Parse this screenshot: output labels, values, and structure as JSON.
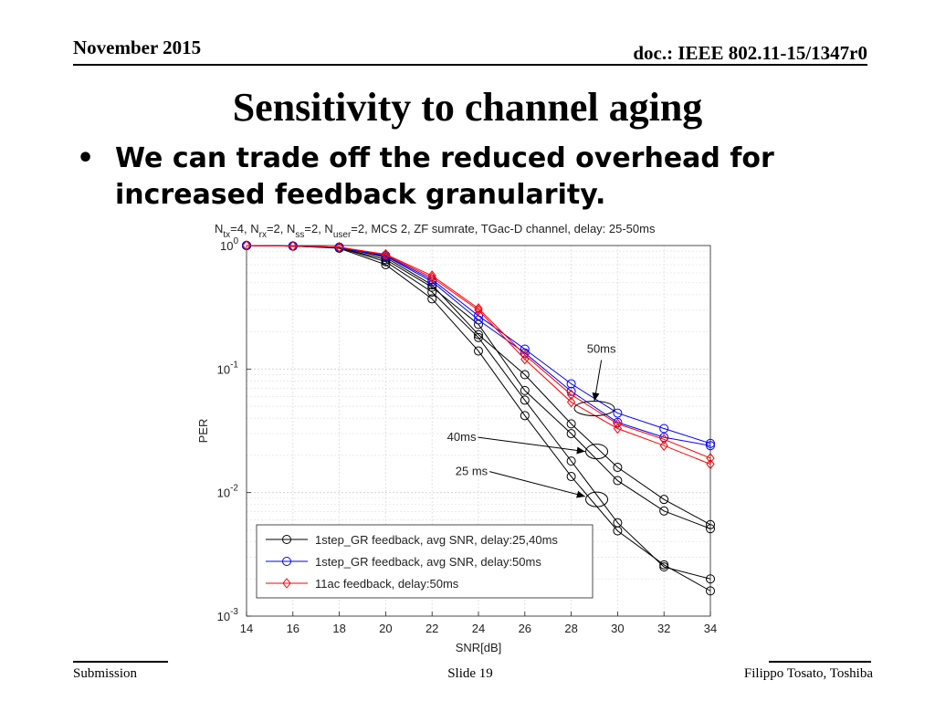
{
  "header": {
    "date": "November 2015",
    "doc": "doc.: IEEE 802.11-15/1347r0"
  },
  "slide_title": "Sensitivity to channel aging",
  "bullet": {
    "symbol": "•",
    "text": "We can trade off the reduced overhead for increased feedback granularity."
  },
  "footer": {
    "left": "Submission",
    "center": "Slide 19",
    "right": "Filippo Tosato, Toshiba"
  },
  "chart_data": {
    "type": "line",
    "title": {
      "parts": [
        {
          "t": "N"
        },
        {
          "t": "tx",
          "sub": true
        },
        {
          "t": "=4, N"
        },
        {
          "t": "rx",
          "sub": true
        },
        {
          "t": "=2, N"
        },
        {
          "t": "ss",
          "sub": true
        },
        {
          "t": "=2, N"
        },
        {
          "t": "user",
          "sub": true
        },
        {
          "t": "=2, MCS 2, ZF sumrate, TGac-D channel, delay: 25-50ms"
        }
      ]
    },
    "xlabel": "SNR[dB]",
    "ylabel": "PER",
    "xlim": [
      14,
      34
    ],
    "ylim": [
      0.001,
      1
    ],
    "yscale": "log",
    "grid": true,
    "xticks": [
      14,
      16,
      18,
      20,
      22,
      24,
      26,
      28,
      30,
      32,
      34
    ],
    "yticks": [
      {
        "value": 1,
        "base": "10",
        "exp": "0"
      },
      {
        "value": 0.1,
        "base": "10",
        "exp": "-1"
      },
      {
        "value": 0.01,
        "base": "10",
        "exp": "-2"
      },
      {
        "value": 0.001,
        "base": "10",
        "exp": "-3"
      }
    ],
    "legend_position": "bottom-left",
    "legend": [
      {
        "label": "1step_GR feedback, avg SNR, delay:25,40ms",
        "color": "#000000",
        "marker": "circle"
      },
      {
        "label": "1step_GR feedback, avg SNR, delay:50ms",
        "color": "#0000ff",
        "marker": "circle"
      },
      {
        "label": "11ac feedback, delay:50ms",
        "color": "#ff0000",
        "marker": "diamond"
      }
    ],
    "x": [
      14,
      16,
      18,
      20,
      22,
      24,
      26,
      28,
      30,
      32,
      34
    ],
    "series": [
      {
        "group": 0,
        "color": "#000000",
        "marker": "circle",
        "values": [
          1.0,
          0.99,
          0.95,
          0.7,
          0.37,
          0.14,
          0.042,
          0.0135,
          0.0049,
          0.0026,
          0.0016
        ]
      },
      {
        "group": 0,
        "color": "#000000",
        "marker": "circle",
        "values": [
          1.0,
          0.99,
          0.96,
          0.74,
          0.42,
          0.18,
          0.056,
          0.018,
          0.0057,
          0.0025,
          0.002
        ]
      },
      {
        "group": 0,
        "color": "#000000",
        "marker": "circle",
        "values": [
          1.0,
          0.99,
          0.96,
          0.77,
          0.46,
          0.23,
          0.067,
          0.03,
          0.0125,
          0.0071,
          0.0051
        ]
      },
      {
        "group": 0,
        "color": "#000000",
        "marker": "circle",
        "values": [
          1.0,
          0.99,
          0.97,
          0.8,
          0.48,
          0.19,
          0.09,
          0.036,
          0.016,
          0.0088,
          0.0055
        ]
      },
      {
        "group": 1,
        "color": "#0000ff",
        "marker": "circle",
        "values": [
          1.0,
          0.99,
          0.97,
          0.83,
          0.53,
          0.27,
          0.145,
          0.076,
          0.044,
          0.033,
          0.025
        ]
      },
      {
        "group": 1,
        "color": "#0000ff",
        "marker": "circle",
        "values": [
          1.0,
          0.99,
          0.96,
          0.82,
          0.51,
          0.25,
          0.135,
          0.066,
          0.037,
          0.028,
          0.024
        ]
      },
      {
        "group": 2,
        "color": "#ff0000",
        "marker": "diamond",
        "values": [
          1.0,
          0.99,
          0.97,
          0.85,
          0.57,
          0.31,
          0.13,
          0.062,
          0.036,
          0.027,
          0.019
        ]
      },
      {
        "group": 2,
        "color": "#ff0000",
        "marker": "diamond",
        "values": [
          1.0,
          0.99,
          0.97,
          0.84,
          0.55,
          0.3,
          0.12,
          0.054,
          0.033,
          0.024,
          0.017
        ]
      }
    ],
    "annotations": [
      {
        "label": "50ms",
        "text_x": 29.3,
        "text_y": 0.145,
        "arrow_to_x": 29.0,
        "arrow_to_y": 0.055,
        "ellipse_x": 29.0,
        "ellipse_y": 0.048
      },
      {
        "label": "40ms",
        "text_x": 23.9,
        "text_y": 0.028,
        "arrow_to_x": 28.6,
        "arrow_to_y": 0.0215,
        "ellipse_x": 29.1,
        "ellipse_y": 0.0215
      },
      {
        "label": "25 ms",
        "text_x": 24.4,
        "text_y": 0.0148,
        "arrow_to_x": 28.6,
        "arrow_to_y": 0.0093,
        "ellipse_x": 29.1,
        "ellipse_y": 0.0088
      }
    ]
  }
}
